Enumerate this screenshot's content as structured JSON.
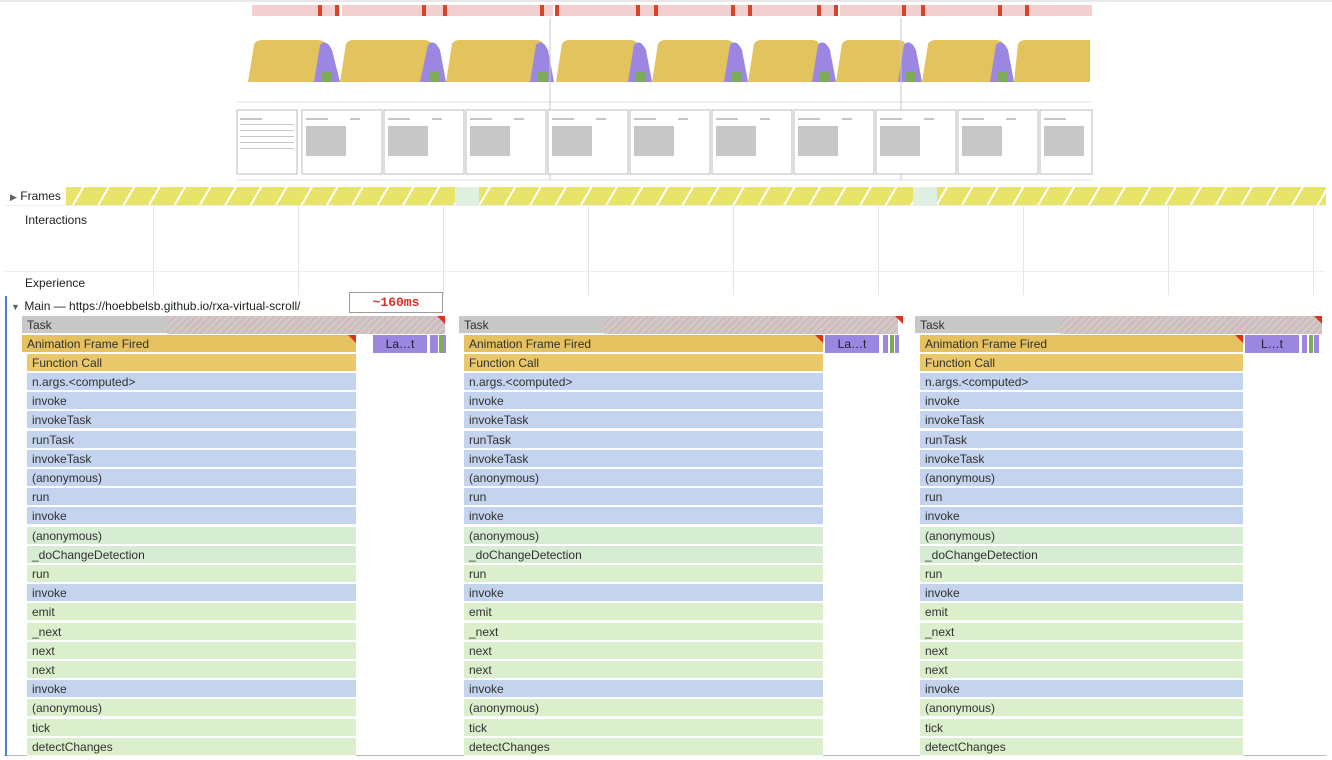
{
  "tracks": {
    "frames_label": "Frames",
    "interactions_label": "Interactions",
    "experience_label": "Experience",
    "main_label": "Main — https://hoebbelsb.github.io/rxa-virtual-scroll/"
  },
  "annotation": "~160ms",
  "colors": {
    "task": "#c8c8c8",
    "animation_frame": "#e5c25f",
    "scripting_blue": "#c4d3ee",
    "scripting_green": "#dcefcc",
    "long_task_marker": "#e0301e",
    "frames": "#e8e46a",
    "cpu_yellow": "#e2c35e",
    "cpu_purple": "#9b86e2"
  },
  "flame": {
    "task": "Task",
    "anim": "Animation Frame Fired",
    "fn": "Function Call",
    "stack": [
      "n.args.<computed>",
      "invoke",
      "invokeTask",
      "runTask",
      "invokeTask",
      "(anonymous)",
      "run",
      "invoke",
      "(anonymous)",
      "_doChangeDetection",
      "run",
      "invoke",
      "emit",
      "_next",
      "next",
      "next",
      "invoke",
      "(anonymous)",
      "tick",
      "detectChanges"
    ],
    "stack_colors": [
      "blue",
      "blue",
      "blue",
      "blue",
      "blue",
      "blue",
      "blue",
      "blue",
      "green2",
      "green2",
      "green",
      "blue",
      "green",
      "green",
      "green",
      "green",
      "blue",
      "green",
      "green",
      "green"
    ],
    "short_labels": [
      "La…t",
      "La…t",
      "L…t"
    ]
  }
}
